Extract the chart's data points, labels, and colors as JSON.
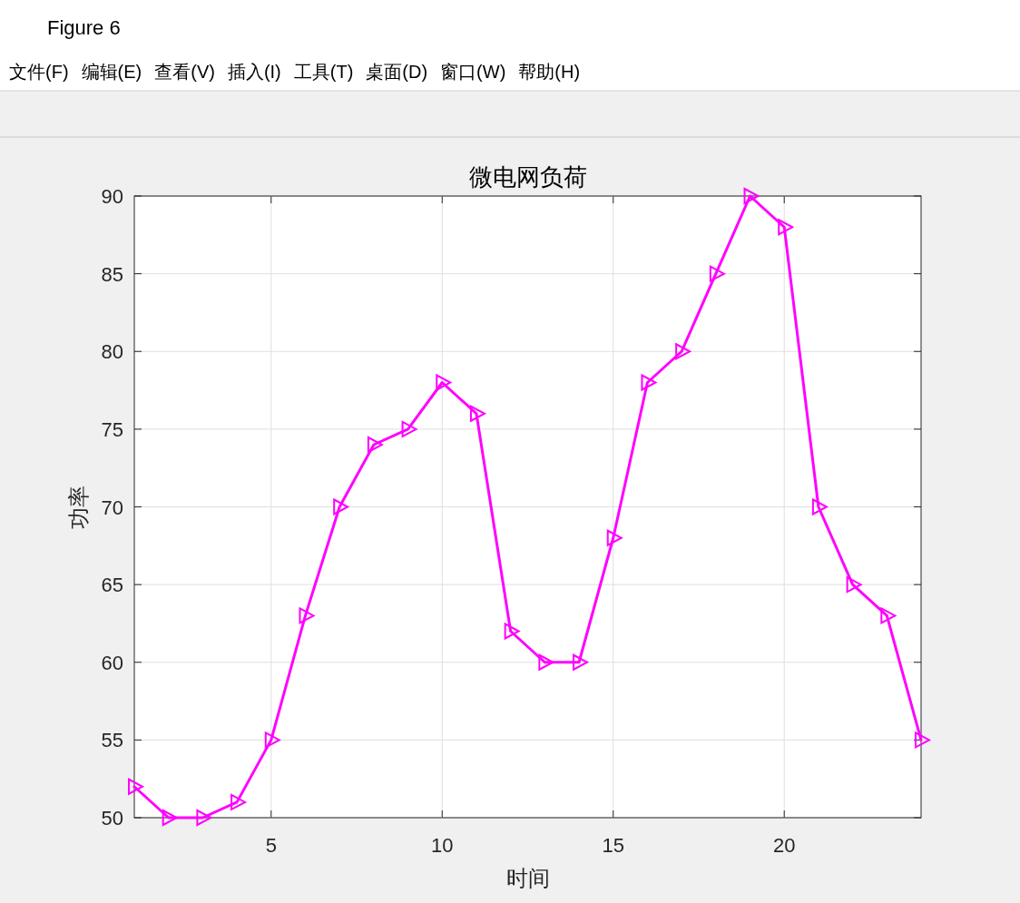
{
  "chart_data": {
    "type": "line",
    "title": "微电网负荷",
    "xlabel": "时间",
    "ylabel": "功率",
    "annotations": [
      "Figure 6",
      "文件(F)",
      "编辑(E)",
      "查看(V)",
      "插入(I)",
      "工具(T)",
      "桌面(D)",
      "窗口(W)",
      "帮助(H)"
    ],
    "x": [
      1,
      2,
      3,
      4,
      5,
      6,
      7,
      8,
      9,
      10,
      11,
      12,
      13,
      14,
      15,
      16,
      17,
      18,
      19,
      20,
      21,
      22,
      23,
      24
    ],
    "series": [
      {
        "color": "#ff00ff",
        "values": [
          52,
          50,
          50,
          51,
          55,
          63,
          70,
          74,
          75,
          78,
          76,
          62,
          60,
          60,
          68,
          78,
          80,
          85,
          90,
          88,
          70,
          65,
          63,
          55
        ]
      }
    ],
    "xlim": [
      1,
      24
    ],
    "xticks": [
      5,
      10,
      15,
      20
    ],
    "ylim": [
      50,
      90
    ],
    "yticks": [
      50,
      55,
      60,
      65,
      70,
      75,
      80,
      85,
      90
    ],
    "grid": true,
    "marker": "triangle",
    "line_style": "solid"
  }
}
